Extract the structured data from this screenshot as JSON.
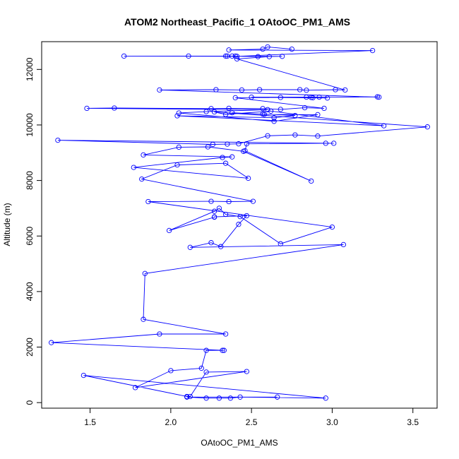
{
  "chart_data": {
    "type": "line",
    "title": "ATOM2 Northeast_Pacific_1 OAtoOC_PM1_AMS",
    "xlabel": "OAtoOC_PM1_AMS",
    "ylabel": "Altitude (m)",
    "xlim": [
      1.2,
      3.65
    ],
    "ylim": [
      -200,
      13000
    ],
    "xticks": [
      1.5,
      2.0,
      2.5,
      3.0,
      3.5
    ],
    "yticks": [
      0,
      2000,
      4000,
      6000,
      8000,
      10000,
      12000
    ],
    "grid": false,
    "marker": "open-circle",
    "color": "#0000ff",
    "x": [
      2.66,
      2.1,
      2.22,
      2.3,
      2.37,
      2.43,
      2.96,
      1.46,
      2.1,
      2.12,
      2.22,
      2.47,
      1.78,
      2.0,
      2.19,
      2.22,
      2.32,
      2.33,
      1.26,
      1.93,
      2.34,
      1.83,
      1.84,
      3.07,
      2.12,
      2.25,
      2.31,
      2.42,
      2.47,
      2.27,
      2.27,
      1.99,
      2.27,
      2.3,
      2.34,
      2.43,
      2.68,
      3.0,
      1.86,
      2.25,
      2.36,
      2.51,
      1.82,
      2.04,
      2.34,
      2.48,
      1.77,
      2.32,
      2.38,
      1.83,
      2.05,
      2.23,
      2.45,
      2.87,
      2.46,
      2.47,
      2.96,
      3.01,
      1.3,
      2.26,
      2.35,
      2.42,
      2.6,
      2.77,
      2.91,
      3.59,
      2.27,
      2.34,
      2.62,
      3.32,
      2.04,
      2.64,
      2.77,
      2.38,
      2.57,
      2.58,
      2.91,
      2.64,
      2.05,
      2.22,
      2.6,
      1.48,
      1.65,
      2.25,
      2.36,
      2.57,
      2.68,
      2.83,
      2.95,
      2.4,
      2.68,
      2.84,
      2.87,
      2.88,
      2.97,
      2.5,
      2.92,
      3.28,
      3.29,
      1.93,
      2.28,
      2.44,
      2.55,
      2.8,
      2.84,
      3.02,
      3.08,
      2.41,
      2.61,
      2.34,
      2.54,
      2.69,
      1.71,
      2.11,
      2.35,
      2.38,
      2.4,
      2.41,
      3.25,
      2.36,
      2.57,
      2.6,
      2.75
    ],
    "y": [
      200,
      200,
      160,
      160,
      160,
      200,
      160,
      980,
      220,
      220,
      1100,
      1120,
      540,
      1150,
      1240,
      1880,
      1880,
      1880,
      2160,
      2470,
      2470,
      3000,
      4650,
      5690,
      5590,
      5760,
      5620,
      6420,
      6730,
      6690,
      6680,
      6200,
      6890,
      7000,
      6780,
      6700,
      5720,
      6320,
      7240,
      7250,
      7240,
      7250,
      8050,
      8560,
      8620,
      8080,
      8470,
      8830,
      8850,
      8920,
      9200,
      9210,
      9050,
      7980,
      9070,
      9320,
      9340,
      9340,
      9450,
      9300,
      9310,
      9320,
      9610,
      9640,
      9600,
      9930,
      10470,
      10380,
      10500,
      9970,
      10330,
      10260,
      10340,
      10440,
      10390,
      10380,
      10370,
      10130,
      10430,
      10480,
      10550,
      10600,
      10610,
      10590,
      10600,
      10590,
      10560,
      10620,
      10600,
      10980,
      10990,
      11000,
      10990,
      10980,
      10970,
      11000,
      11000,
      11010,
      11000,
      11260,
      11270,
      11260,
      11270,
      11270,
      11250,
      11270,
      11260,
      12380,
      12460,
      12480,
      12460,
      12470,
      12480,
      12480,
      12480,
      12480,
      12480,
      12470,
      12680,
      12700,
      12730,
      12810,
      12730
    ]
  }
}
